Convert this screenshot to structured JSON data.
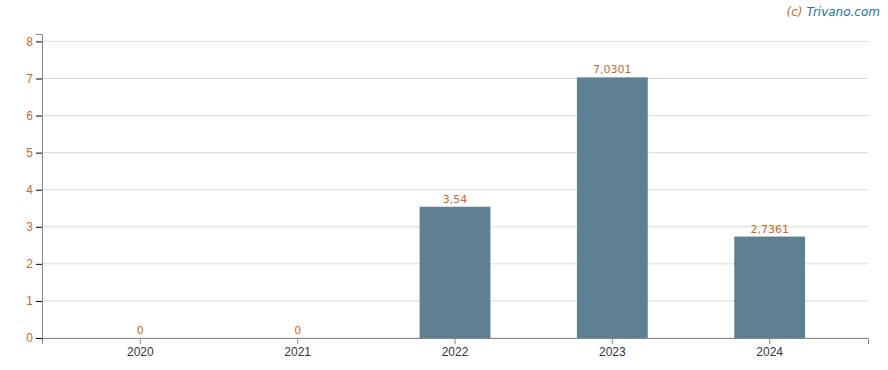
{
  "chart_data": {
    "type": "bar",
    "categories": [
      "2020",
      "2021",
      "2022",
      "2023",
      "2024"
    ],
    "values": [
      0,
      0,
      3.54,
      7.0301,
      2.7361
    ],
    "value_labels": [
      "0",
      "0",
      "3,54",
      "7,0301",
      "2,7361"
    ],
    "data_labels": true,
    "color": "#5f7f93",
    "ylim": [
      0,
      8.2
    ],
    "yticks": [
      0,
      1,
      2,
      3,
      4,
      5,
      6,
      7,
      8
    ],
    "grid": true,
    "annotations": [
      "(c)",
      "Trivano.com"
    ]
  }
}
